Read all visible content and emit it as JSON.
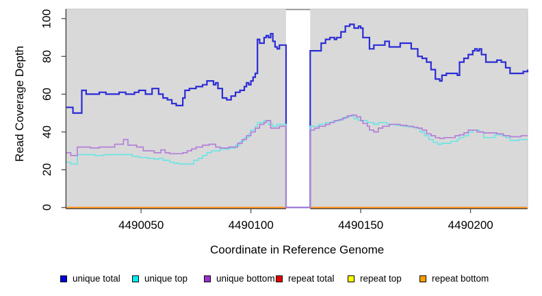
{
  "chart_data": {
    "type": "line",
    "subtype": "step",
    "title": "",
    "xlabel": "Coordinate in Reference Genome",
    "ylabel": "Read Coverage Depth",
    "xlim": [
      4490016,
      4490226
    ],
    "ylim": [
      0,
      100
    ],
    "x_ticks": [
      "4490050",
      "4490100",
      "4490150",
      "4490200"
    ],
    "x_tick_values": [
      4490050,
      4490100,
      4490150,
      4490200
    ],
    "y_ticks": [
      "0",
      "20",
      "40",
      "60",
      "80",
      "100"
    ],
    "y_tick_values": [
      0,
      20,
      40,
      60,
      80,
      100
    ],
    "grid": false,
    "plot_background": "#d9d9d9",
    "page_background": "#ffffff",
    "masked_region": {
      "x_start": 4490116,
      "x_end": 4490127,
      "color": "#ffffff"
    },
    "legend_position": "bottom",
    "legend": [
      {
        "label": "unique total",
        "color": "#0000dd"
      },
      {
        "label": "unique top",
        "color": "#00eeee"
      },
      {
        "label": "unique bottom",
        "color": "#9932cc"
      },
      {
        "label": "repeat total",
        "color": "#e60000"
      },
      {
        "label": "repeat top",
        "color": "#ffff00"
      },
      {
        "label": "repeat bottom",
        "color": "#ffa000"
      }
    ],
    "series": [
      {
        "name": "unique total",
        "color": "#2b2bd5",
        "line_width": 2.2,
        "points": [
          [
            4490016,
            53
          ],
          [
            4490019,
            50
          ],
          [
            4490023,
            62
          ],
          [
            4490025,
            60
          ],
          [
            4490031,
            61
          ],
          [
            4490034,
            60
          ],
          [
            4490040,
            61
          ],
          [
            4490043,
            60
          ],
          [
            4490047,
            61
          ],
          [
            4490049,
            62
          ],
          [
            4490052,
            60
          ],
          [
            4490055,
            63
          ],
          [
            4490058,
            60
          ],
          [
            4490060,
            58
          ],
          [
            4490062,
            57
          ],
          [
            4490064,
            55
          ],
          [
            4490066,
            54
          ],
          [
            4490069,
            58
          ],
          [
            4490070,
            62
          ],
          [
            4490072,
            63
          ],
          [
            4490075,
            64
          ],
          [
            4490078,
            65
          ],
          [
            4490080,
            67
          ],
          [
            4490083,
            65
          ],
          [
            4490084,
            66
          ],
          [
            4490085,
            63
          ],
          [
            4490087,
            58
          ],
          [
            4490089,
            57
          ],
          [
            4490091,
            59
          ],
          [
            4490093,
            61
          ],
          [
            4490095,
            62
          ],
          [
            4490097,
            64
          ],
          [
            4490098,
            66
          ],
          [
            4490099,
            65
          ],
          [
            4490100,
            67
          ],
          [
            4490101,
            69
          ],
          [
            4490102,
            71
          ],
          [
            4490103,
            89
          ],
          [
            4490104,
            87
          ],
          [
            4490106,
            90
          ],
          [
            4490107,
            91
          ],
          [
            4490108,
            90
          ],
          [
            4490109,
            92
          ],
          [
            4490110,
            88
          ],
          [
            4490111,
            85
          ],
          [
            4490112,
            84
          ],
          [
            4490113,
            86
          ],
          [
            4490116,
            0
          ],
          [
            4490127,
            83
          ],
          [
            4490132,
            87
          ],
          [
            4490134,
            89
          ],
          [
            4490136,
            90
          ],
          [
            4490138,
            89
          ],
          [
            4490139,
            90
          ],
          [
            4490141,
            93
          ],
          [
            4490143,
            96
          ],
          [
            4490145,
            97
          ],
          [
            4490147,
            95
          ],
          [
            4490149,
            96
          ],
          [
            4490150,
            95
          ],
          [
            4490151,
            90
          ],
          [
            4490154,
            84
          ],
          [
            4490156,
            86
          ],
          [
            4490161,
            88
          ],
          [
            4490163,
            85
          ],
          [
            4490168,
            87
          ],
          [
            4490173,
            84
          ],
          [
            4490176,
            80
          ],
          [
            4490178,
            79
          ],
          [
            4490180,
            77
          ],
          [
            4490182,
            73
          ],
          [
            4490184,
            68
          ],
          [
            4490186,
            67
          ],
          [
            4490187,
            70
          ],
          [
            4490189,
            71
          ],
          [
            4490194,
            70
          ],
          [
            4490195,
            77
          ],
          [
            4490197,
            79
          ],
          [
            4490199,
            81
          ],
          [
            4490201,
            83
          ],
          [
            4490202,
            84
          ],
          [
            4490203,
            83
          ],
          [
            4490204,
            84
          ],
          [
            4490205,
            81
          ],
          [
            4490207,
            77
          ],
          [
            4490212,
            78
          ],
          [
            4490214,
            77
          ],
          [
            4490216,
            74
          ],
          [
            4490218,
            71
          ],
          [
            4490224,
            72
          ],
          [
            4490226,
            73
          ]
        ]
      },
      {
        "name": "unique top",
        "color": "#6fe4e4",
        "line_width": 1.7,
        "points": [
          [
            4490016,
            24
          ],
          [
            4490018,
            23
          ],
          [
            4490021,
            28
          ],
          [
            4490029,
            27.5
          ],
          [
            4490033,
            28
          ],
          [
            4490044,
            28
          ],
          [
            4490046,
            27
          ],
          [
            4490049,
            26.5
          ],
          [
            4490053,
            26
          ],
          [
            4490056,
            25.5
          ],
          [
            4490058,
            26
          ],
          [
            4490060,
            25
          ],
          [
            4490063,
            24
          ],
          [
            4490065,
            23.5
          ],
          [
            4490067,
            23
          ],
          [
            4490074,
            25
          ],
          [
            4490076,
            26
          ],
          [
            4490078,
            27.5
          ],
          [
            4490080,
            29
          ],
          [
            4490082,
            30
          ],
          [
            4490086,
            31
          ],
          [
            4490090,
            31.5
          ],
          [
            4490093,
            33
          ],
          [
            4490095,
            35
          ],
          [
            4490097,
            37
          ],
          [
            4490099,
            39
          ],
          [
            4490100,
            41
          ],
          [
            4490102,
            43
          ],
          [
            4490103,
            45
          ],
          [
            4490106,
            46
          ],
          [
            4490108,
            44
          ],
          [
            4490110,
            43
          ],
          [
            4490112,
            44
          ],
          [
            4490116,
            0
          ],
          [
            4490127,
            43
          ],
          [
            4490131,
            44
          ],
          [
            4490134,
            45
          ],
          [
            4490137,
            45.5
          ],
          [
            4490139,
            46
          ],
          [
            4490141,
            47
          ],
          [
            4490143,
            48
          ],
          [
            4490145,
            48.5
          ],
          [
            4490147,
            47
          ],
          [
            4490149,
            46
          ],
          [
            4490153,
            45
          ],
          [
            4490156,
            44
          ],
          [
            4490158,
            45
          ],
          [
            4490162,
            44
          ],
          [
            4490166,
            43.5
          ],
          [
            4490169,
            43
          ],
          [
            4490172,
            42.5
          ],
          [
            4490175,
            42
          ],
          [
            4490177,
            40
          ],
          [
            4490179,
            38
          ],
          [
            4490181,
            36
          ],
          [
            4490183,
            34.5
          ],
          [
            4490185,
            33.5
          ],
          [
            4490187,
            34
          ],
          [
            4490191,
            35
          ],
          [
            4490194,
            36
          ],
          [
            4490195,
            37
          ],
          [
            4490197,
            38
          ],
          [
            4490199,
            40
          ],
          [
            4490201,
            41
          ],
          [
            4490204,
            40
          ],
          [
            4490206,
            37
          ],
          [
            4490211,
            38.5
          ],
          [
            4490214,
            38
          ],
          [
            4490216,
            37
          ],
          [
            4490218,
            35.5
          ],
          [
            4490222,
            36
          ],
          [
            4490226,
            36
          ]
        ]
      },
      {
        "name": "unique bottom",
        "color": "#b47fd8",
        "line_width": 1.7,
        "points": [
          [
            4490016,
            29
          ],
          [
            4490018,
            27.5
          ],
          [
            4490021,
            32
          ],
          [
            4490027,
            31.5
          ],
          [
            4490031,
            32
          ],
          [
            4490038,
            33.5
          ],
          [
            4490042,
            36
          ],
          [
            4490044,
            33
          ],
          [
            4490048,
            32
          ],
          [
            4490051,
            30
          ],
          [
            4490056,
            29
          ],
          [
            4490059,
            30.5
          ],
          [
            4490061,
            29
          ],
          [
            4490063,
            28.5
          ],
          [
            4490069,
            29
          ],
          [
            4490071,
            30
          ],
          [
            4490073,
            31
          ],
          [
            4490075,
            32
          ],
          [
            4490078,
            33
          ],
          [
            4490081,
            33.5
          ],
          [
            4490084,
            32
          ],
          [
            4490086,
            31.5
          ],
          [
            4490090,
            32
          ],
          [
            4490094,
            34
          ],
          [
            4490096,
            36
          ],
          [
            4490098,
            38
          ],
          [
            4490100,
            40
          ],
          [
            4490102,
            42
          ],
          [
            4490104,
            44
          ],
          [
            4490106,
            45
          ],
          [
            4490107,
            46
          ],
          [
            4490109,
            42
          ],
          [
            4490111,
            42
          ],
          [
            4490113,
            43
          ],
          [
            4490116,
            0
          ],
          [
            4490127,
            41
          ],
          [
            4490129,
            42
          ],
          [
            4490131,
            43
          ],
          [
            4490134,
            44
          ],
          [
            4490136,
            45
          ],
          [
            4490138,
            46
          ],
          [
            4490140,
            46.5
          ],
          [
            4490142,
            47.5
          ],
          [
            4490144,
            48.5
          ],
          [
            4490146,
            49
          ],
          [
            4490148,
            48
          ],
          [
            4490150,
            46
          ],
          [
            4490151,
            44.5
          ],
          [
            4490153,
            43
          ],
          [
            4490154,
            41
          ],
          [
            4490156,
            40
          ],
          [
            4490158,
            42
          ],
          [
            4490160,
            43
          ],
          [
            4490163,
            44
          ],
          [
            4490168,
            43.5
          ],
          [
            4490171,
            43
          ],
          [
            4490174,
            42.5
          ],
          [
            4490176,
            42
          ],
          [
            4490178,
            41
          ],
          [
            4490180,
            39
          ],
          [
            4490182,
            38
          ],
          [
            4490184,
            37
          ],
          [
            4490186,
            36.5
          ],
          [
            4490188,
            37
          ],
          [
            4490193,
            38
          ],
          [
            4490195,
            38.5
          ],
          [
            4490197,
            39.5
          ],
          [
            4490199,
            41
          ],
          [
            4490203,
            40
          ],
          [
            4490206,
            39.5
          ],
          [
            4490212,
            39
          ],
          [
            4490215,
            38
          ],
          [
            4490218,
            37.5
          ],
          [
            4490223,
            38
          ],
          [
            4490226,
            38
          ]
        ]
      },
      {
        "name": "repeat total",
        "color": "#e60000",
        "line_width": 1.7,
        "points": [
          [
            4490016,
            0
          ],
          [
            4490226,
            0
          ]
        ]
      },
      {
        "name": "repeat top",
        "color": "#ffff00",
        "line_width": 1.7,
        "points": [
          [
            4490016,
            0
          ],
          [
            4490226,
            0
          ]
        ]
      },
      {
        "name": "repeat bottom",
        "color": "#ff9020",
        "line_width": 2.2,
        "points": [
          [
            4490016,
            0
          ],
          [
            4490226,
            0
          ]
        ]
      }
    ]
  }
}
